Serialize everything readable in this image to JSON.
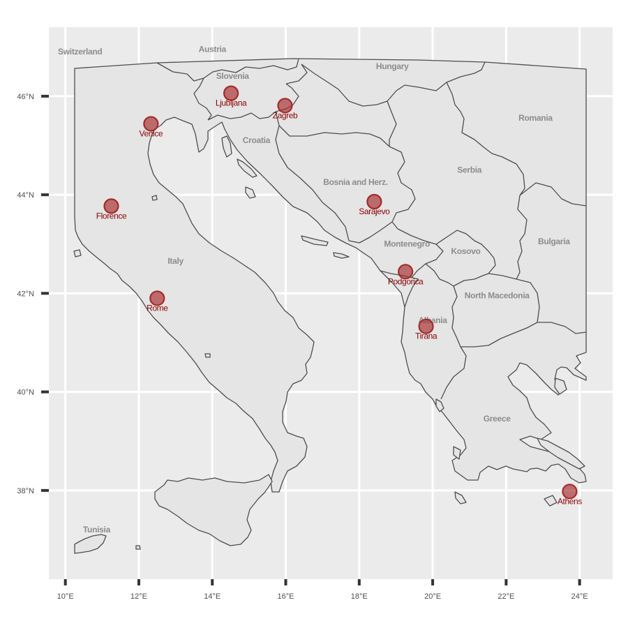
{
  "map": {
    "type": "map",
    "axes": {
      "x_ticks": [
        {
          "value": 10,
          "label": "10°E"
        },
        {
          "value": 12,
          "label": "12°E"
        },
        {
          "value": 14,
          "label": "14°E"
        },
        {
          "value": 16,
          "label": "16°E"
        },
        {
          "value": 18,
          "label": "18°E"
        },
        {
          "value": 20,
          "label": "20°E"
        },
        {
          "value": 22,
          "label": "22°E"
        },
        {
          "value": 24,
          "label": "24°E"
        }
      ],
      "y_ticks": [
        {
          "value": 38,
          "label": "38°N"
        },
        {
          "value": 40,
          "label": "40°N"
        },
        {
          "value": 42,
          "label": "42°N"
        },
        {
          "value": 44,
          "label": "44°N"
        },
        {
          "value": 46,
          "label": "46°N"
        }
      ],
      "lon_range": [
        9.55,
        24.9
      ],
      "lat_range": [
        36.2,
        47.4
      ],
      "grid": true
    },
    "countries": [
      {
        "name": "Switzerland",
        "lon": 10.4,
        "lat": 46.85
      },
      {
        "name": "Austria",
        "lon": 14.0,
        "lat": 46.9
      },
      {
        "name": "Hungary",
        "lon": 18.9,
        "lat": 46.55
      },
      {
        "name": "Slovenia",
        "lon": 14.55,
        "lat": 46.35
      },
      {
        "name": "Romania",
        "lon": 22.8,
        "lat": 45.5
      },
      {
        "name": "Croatia",
        "lon": 15.2,
        "lat": 45.05
      },
      {
        "name": "Serbia",
        "lon": 21.0,
        "lat": 44.45
      },
      {
        "name": "Bosnia and Herz.",
        "lon": 17.9,
        "lat": 44.2
      },
      {
        "name": "Montenegro",
        "lon": 19.3,
        "lat": 42.95
      },
      {
        "name": "Kosovo",
        "lon": 20.9,
        "lat": 42.8
      },
      {
        "name": "Bulgaria",
        "lon": 23.3,
        "lat": 43.0
      },
      {
        "name": "Italy",
        "lon": 13.0,
        "lat": 42.6
      },
      {
        "name": "North Macedonia",
        "lon": 21.75,
        "lat": 41.9
      },
      {
        "name": "Albania",
        "lon": 20.0,
        "lat": 41.4
      },
      {
        "name": "Greece",
        "lon": 21.75,
        "lat": 39.4
      },
      {
        "name": "Tunisia",
        "lon": 10.85,
        "lat": 37.15
      }
    ],
    "cities": [
      {
        "name": "Ljubljana",
        "lon": 14.51,
        "lat": 46.06
      },
      {
        "name": "Zagreb",
        "lon": 15.98,
        "lat": 45.81
      },
      {
        "name": "Venice",
        "lon": 12.33,
        "lat": 45.44
      },
      {
        "name": "Florence",
        "lon": 11.25,
        "lat": 43.77
      },
      {
        "name": "Sarajevo",
        "lon": 18.41,
        "lat": 43.86
      },
      {
        "name": "Podgorica",
        "lon": 19.26,
        "lat": 42.44
      },
      {
        "name": "Rome",
        "lon": 12.5,
        "lat": 41.9
      },
      {
        "name": "Tirana",
        "lon": 19.82,
        "lat": 41.33
      },
      {
        "name": "Athens",
        "lon": 23.73,
        "lat": 37.98
      }
    ],
    "colors": {
      "panel": "#ebebeb",
      "land": "#e5e5e5",
      "border": "#4d4d4d",
      "country_label": "#8c8c8c",
      "city_point": "#a52a2a",
      "city_label": "#8b0000"
    }
  }
}
